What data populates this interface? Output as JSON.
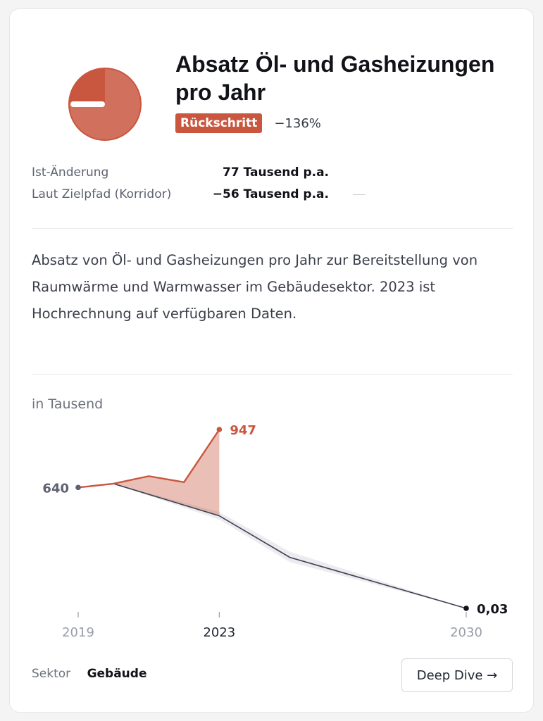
{
  "card": {
    "title": "Absatz Öl- und Gasheizungen pro Jahr",
    "status_badge": "Rückschritt",
    "change_percent": "−136%",
    "progress_fraction": 0.25,
    "stats": [
      {
        "label": "Ist-Änderung",
        "value": "77 Tausend p.a."
      },
      {
        "label": "Laut Zielpfad (Korridor)",
        "value": "−56 Tausend p.a.",
        "extra": "—"
      }
    ],
    "description": "Absatz von Öl- und Gasheizungen pro Jahr zur Bereitstellung von Raumwärme und Warmwasser im Gebäudesektor. 2023 ist Hochrechnung auf verfügbaren Daten.",
    "unit_label": "in Tausend",
    "sector_label": "Sektor",
    "sector_value": "Gebäude",
    "deep_dive_button": "Deep Dive →"
  },
  "colors": {
    "actual": "#c9573f",
    "target": "#3d4150",
    "corridor": "#dadbe3",
    "badge_bg": "#c9573f"
  },
  "chart_data": {
    "type": "line",
    "x_tick_labels": [
      "2019",
      "2023",
      "2030"
    ],
    "series": [
      {
        "key": "actual",
        "x": [
          2019,
          2020,
          2021,
          2022,
          2023
        ],
        "values": [
          640,
          660,
          700,
          668,
          947
        ]
      },
      {
        "key": "target",
        "x": [
          2019,
          2020,
          2023,
          2024,
          2025,
          2030
        ],
        "values": [
          640,
          660,
          490,
          380,
          270,
          0.03
        ]
      }
    ],
    "corridor": {
      "x": [
        2020,
        2023,
        2025,
        2030
      ],
      "low": [
        660,
        470,
        245,
        0.03
      ],
      "high": [
        660,
        510,
        300,
        0.03
      ]
    },
    "data_labels": [
      {
        "x": 2019,
        "y": 640,
        "text": "640"
      },
      {
        "x": 2023,
        "y": 947,
        "text": "947"
      },
      {
        "x": 2030,
        "y": 0.03,
        "text": "0,03"
      }
    ],
    "xlim": [
      2019,
      2030
    ],
    "ylim": [
      0,
      947
    ]
  }
}
